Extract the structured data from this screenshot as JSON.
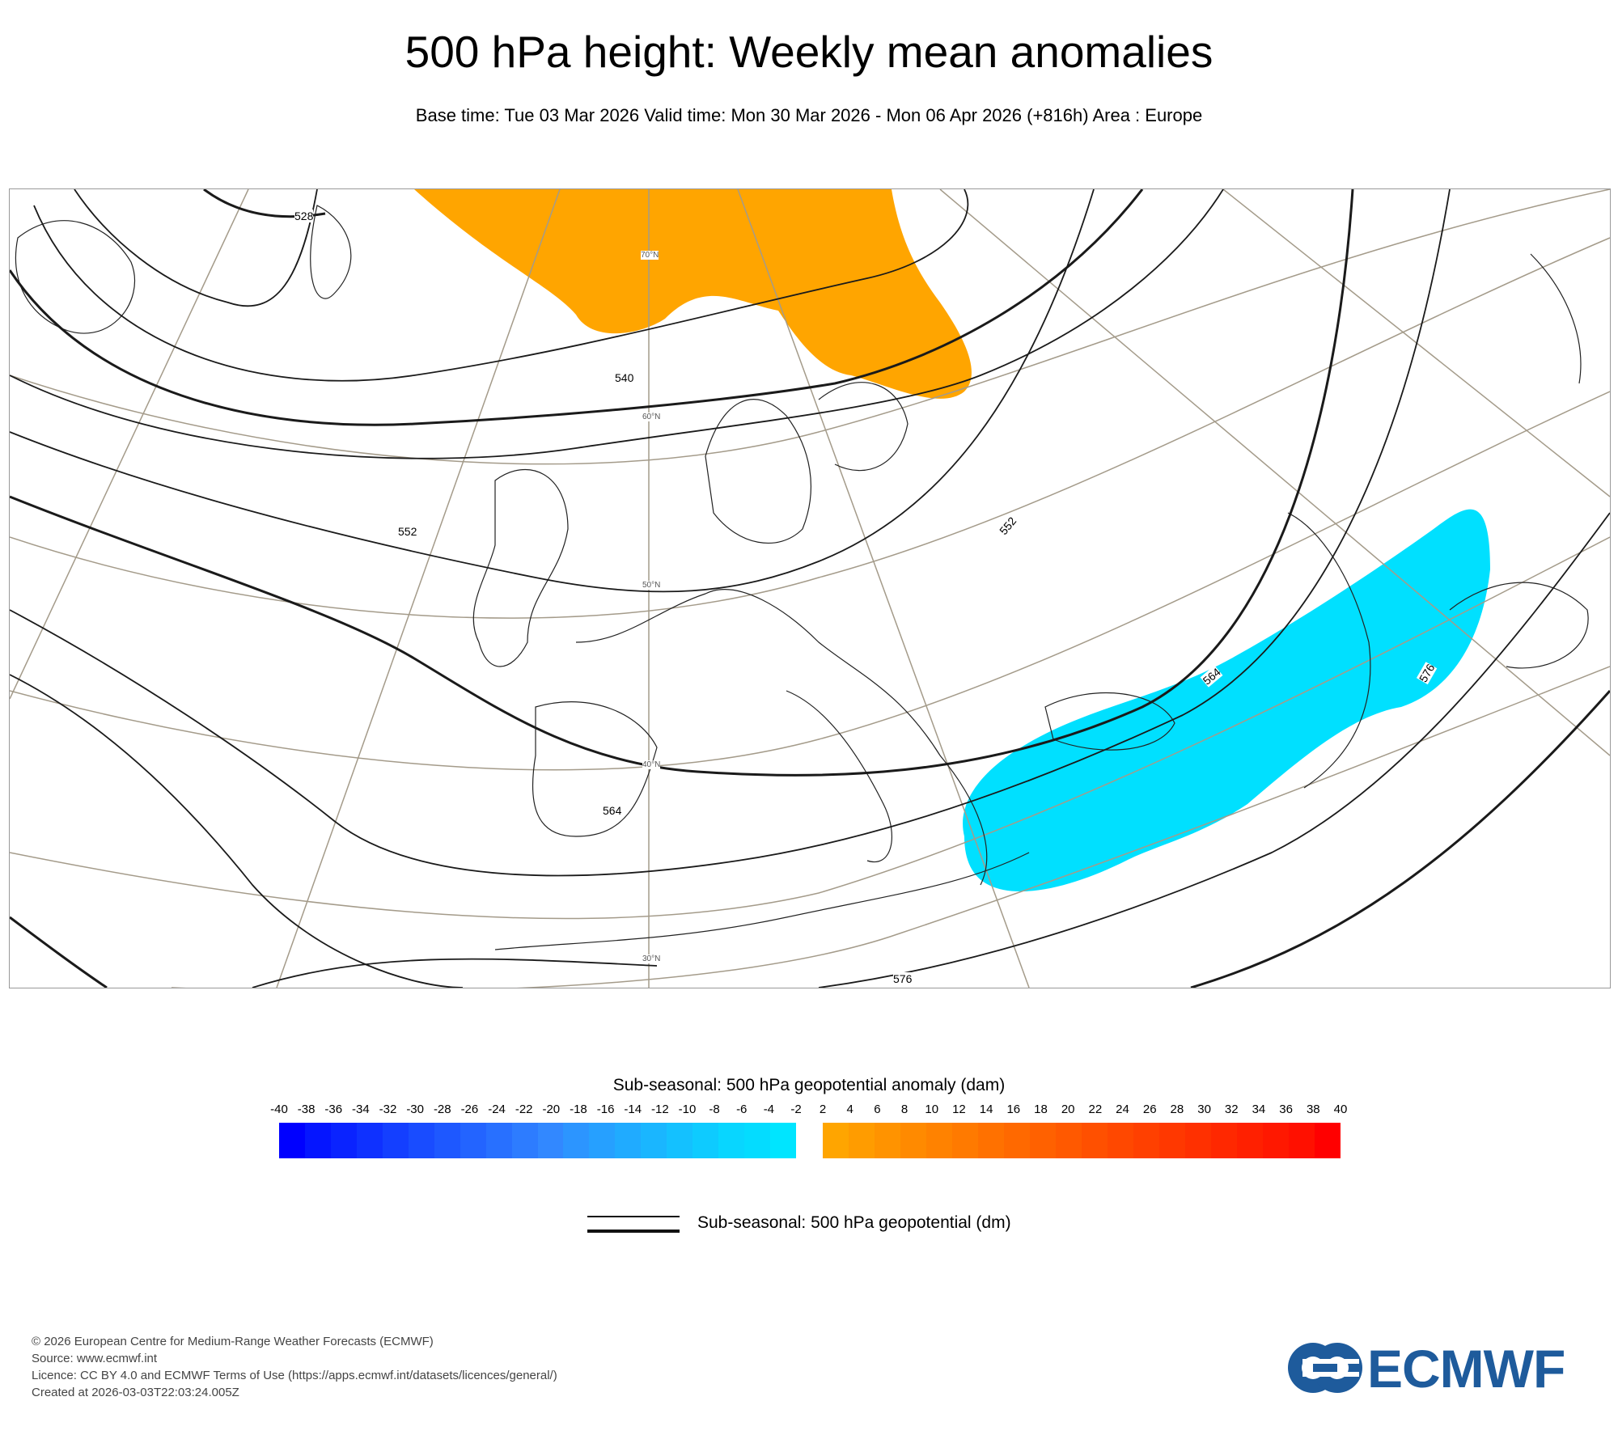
{
  "title": "500 hPa height: Weekly mean anomalies",
  "subtitle": "Base time: Tue 03 Mar 2026 Valid time: Mon 30 Mar 2026 - Mon 06 Apr 2026 (+816h) Area : Europe",
  "map": {
    "area": "Europe",
    "contour_labels": [
      "528",
      "540",
      "552",
      "552",
      "564",
      "564",
      "576",
      "576"
    ],
    "latitude_labels": [
      "70°N",
      "60°N",
      "50°N",
      "40°N",
      "30°N"
    ],
    "anomaly_regions": [
      {
        "name": "positive-anomaly",
        "color": "#ffa500",
        "sign": "positive",
        "location": "Norwegian Sea / Scandinavia"
      },
      {
        "name": "negative-anomaly",
        "color": "#00e0ff",
        "sign": "negative",
        "location": "Eastern Mediterranean / Black Sea to Caspian"
      }
    ],
    "contour_color": "#1a1a1a",
    "graticule_color": "#a49b8a",
    "coast_color": "#222222"
  },
  "legend": {
    "title": "Sub-seasonal: 500 hPa geopotential anomaly (dam)",
    "ticks": [
      "-40",
      "-38",
      "-36",
      "-34",
      "-32",
      "-30",
      "-28",
      "-26",
      "-24",
      "-22",
      "-20",
      "-18",
      "-16",
      "-14",
      "-12",
      "-10",
      "-8",
      "-6",
      "-4",
      "-2",
      "2",
      "4",
      "6",
      "8",
      "10",
      "12",
      "14",
      "16",
      "18",
      "20",
      "22",
      "24",
      "26",
      "28",
      "30",
      "32",
      "34",
      "36",
      "38",
      "40"
    ],
    "negative_colors": [
      "#0000ff",
      "#0515ff",
      "#0a23ff",
      "#0f31ff",
      "#143fff",
      "#194cff",
      "#1e58ff",
      "#2364ff",
      "#2870ff",
      "#2d7cff",
      "#3288ff",
      "#2c95ff",
      "#26a0ff",
      "#20abff",
      "#1ab6ff",
      "#14c1ff",
      "#0ecbff",
      "#08d6ff",
      "#04dcff",
      "#00e5ff"
    ],
    "positive_colors": [
      "#ffa500",
      "#ff9c00",
      "#ff9300",
      "#ff8a00",
      "#ff8200",
      "#ff7a00",
      "#ff7100",
      "#ff6900",
      "#ff6100",
      "#ff5900",
      "#ff5000",
      "#ff4800",
      "#ff4000",
      "#ff3800",
      "#ff3000",
      "#ff2800",
      "#ff2000",
      "#ff1800",
      "#ff1000",
      "#ff0000"
    ]
  },
  "line_legend": {
    "label": "Sub-seasonal: 500 hPa geopotential (dm)"
  },
  "footer": {
    "copyright": "© 2026 European Centre for Medium-Range Weather Forecasts (ECMWF)",
    "source": "Source: www.ecmwf.int",
    "licence": "Licence: CC BY 4.0 and ECMWF Terms of Use (https://apps.ecmwf.int/datasets/licences/general/)",
    "created": "Created at 2026-03-03T22:03:24.005Z"
  },
  "logo": {
    "text": "ECMWF",
    "color": "#1e5b9c"
  }
}
